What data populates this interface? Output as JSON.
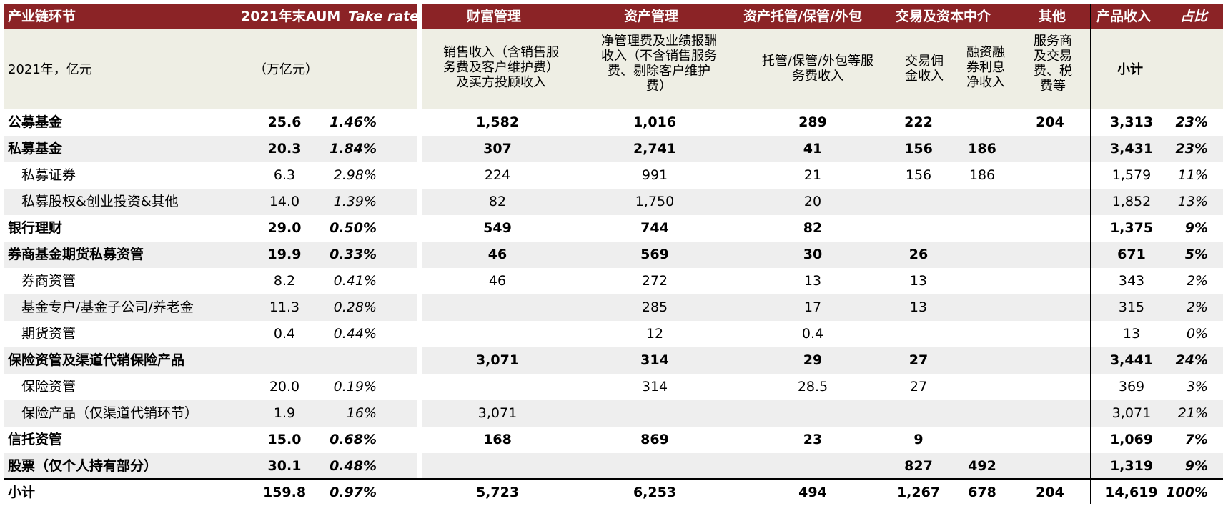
{
  "header": {
    "label": "产业链环节",
    "aum": "2021年末AUM",
    "take_rate": "Take rate",
    "wealth": "财富管理",
    "asset": "资产管理",
    "custody": "资产托管/保管/外包",
    "trading": "交易及资本中介",
    "other": "其他",
    "revenue": "产品收入",
    "share": "占比"
  },
  "subheader": {
    "unit_label": "2021年，亿元",
    "aum_unit": "（万亿元）",
    "wealth_lines": [
      "销售收入（含销售服",
      "务费及客户维护费）",
      "及买方投顾收入"
    ],
    "asset_lines": [
      "净管理费及业绩报酬",
      "收入（不含销售服务",
      "费、剔除客户维护",
      "费）"
    ],
    "custody_lines": [
      "托管/保管/外包等服",
      "务费收入"
    ],
    "commission_lines": [
      "交易佣",
      "金收入"
    ],
    "margin_lines": [
      "融资融",
      "券利息",
      "净收入"
    ],
    "other_lines": [
      "服务商",
      "及交易",
      "费、税",
      "费等"
    ],
    "subtotal": "小计"
  },
  "rows": [
    {
      "name": "公募基金",
      "aum": "25.6",
      "take": "1.46%",
      "wealth": "1,582",
      "asset": "1,016",
      "custody": "289",
      "commission": "222",
      "margin": "",
      "other": "204",
      "revenue": "3,313",
      "share": "23%",
      "bold": true
    },
    {
      "name": "私募基金",
      "aum": "20.3",
      "take": "1.84%",
      "wealth": "307",
      "asset": "2,741",
      "custody": "41",
      "commission": "156",
      "margin": "186",
      "other": "",
      "revenue": "3,431",
      "share": "23%",
      "bold": true
    },
    {
      "name": "私募证券",
      "aum": "6.3",
      "take": "2.98%",
      "wealth": "224",
      "asset": "991",
      "custody": "21",
      "commission": "156",
      "margin": "186",
      "other": "",
      "revenue": "1,579",
      "share": "11%",
      "bold": false
    },
    {
      "name": "私募股权&创业投资&其他",
      "aum": "14.0",
      "take": "1.39%",
      "wealth": "82",
      "asset": "1,750",
      "custody": "20",
      "commission": "",
      "margin": "",
      "other": "",
      "revenue": "1,852",
      "share": "13%",
      "bold": false
    },
    {
      "name": "银行理财",
      "aum": "29.0",
      "take": "0.50%",
      "wealth": "549",
      "asset": "744",
      "custody": "82",
      "commission": "",
      "margin": "",
      "other": "",
      "revenue": "1,375",
      "share": "9%",
      "bold": true
    },
    {
      "name": "券商基金期货私募资管",
      "aum": "19.9",
      "take": "0.33%",
      "wealth": "46",
      "asset": "569",
      "custody": "30",
      "commission": "26",
      "margin": "",
      "other": "",
      "revenue": "671",
      "share": "5%",
      "bold": true
    },
    {
      "name": "券商资管",
      "aum": "8.2",
      "take": "0.41%",
      "wealth": "46",
      "asset": "272",
      "custody": "13",
      "commission": "13",
      "margin": "",
      "other": "",
      "revenue": "343",
      "share": "2%",
      "bold": false
    },
    {
      "name": "基金专户/基金子公司/养老金",
      "aum": "11.3",
      "take": "0.28%",
      "wealth": "",
      "asset": "285",
      "custody": "17",
      "commission": "13",
      "margin": "",
      "other": "",
      "revenue": "315",
      "share": "2%",
      "bold": false
    },
    {
      "name": "期货资管",
      "aum": "0.4",
      "take": "0.44%",
      "wealth": "",
      "asset": "12",
      "custody": "0.4",
      "commission": "",
      "margin": "",
      "other": "",
      "revenue": "13",
      "share": "0%",
      "bold": false
    },
    {
      "name": "保险资管及渠道代销保险产品",
      "aum": "",
      "take": "",
      "wealth": "3,071",
      "asset": "314",
      "custody": "29",
      "commission": "27",
      "margin": "",
      "other": "",
      "revenue": "3,441",
      "share": "24%",
      "bold": true
    },
    {
      "name": "保险资管",
      "aum": "20.0",
      "take": "0.19%",
      "wealth": "",
      "asset": "314",
      "custody": "28.5",
      "commission": "27",
      "margin": "",
      "other": "",
      "revenue": "369",
      "share": "3%",
      "bold": false
    },
    {
      "name": "保险产品（仅渠道代销环节）",
      "aum": "1.9",
      "take": "16%",
      "wealth": "3,071",
      "asset": "",
      "custody": "",
      "commission": "",
      "margin": "",
      "other": "",
      "revenue": "3,071",
      "share": "21%",
      "bold": false
    },
    {
      "name": "信托资管",
      "aum": "15.0",
      "take": "0.68%",
      "wealth": "168",
      "asset": "869",
      "custody": "23",
      "commission": "9",
      "margin": "",
      "other": "",
      "revenue": "1,069",
      "share": "7%",
      "bold": true
    },
    {
      "name": "股票（仅个人持有部分）",
      "aum": "30.1",
      "take": "0.48%",
      "wealth": "",
      "asset": "",
      "custody": "",
      "commission": "827",
      "margin": "492",
      "other": "",
      "revenue": "1,319",
      "share": "9%",
      "bold": true
    },
    {
      "name": "小计",
      "aum": "159.8",
      "take": "0.97%",
      "wealth": "5,723",
      "asset": "6,253",
      "custody": "494",
      "commission": "1,267",
      "margin": "678",
      "other": "204",
      "revenue": "14,619",
      "share": "100%",
      "bold": true
    }
  ]
}
